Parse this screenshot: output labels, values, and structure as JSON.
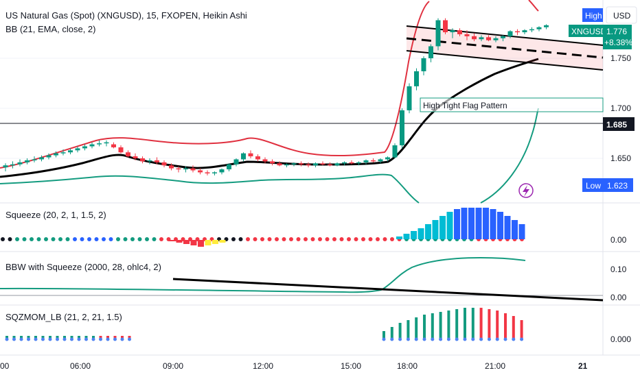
{
  "chart_data": {
    "type": "candlestick",
    "title": "US Natural Gas (Spot) (XNGUSD), 15, FXOPEN, Heikin Ashi",
    "indicator_bb": "BB (21, EMA, close, 2)",
    "currency": "USD",
    "symbol_tag": "XNGUSD",
    "last_price": "1.776",
    "change_pct": "+8.38%",
    "high_label": "High",
    "low_label": "Low",
    "low_value": "1.623",
    "hline_value": "1.685",
    "pattern_label": "High Tight Flag Pattern",
    "price_ticks": [
      "1.750",
      "1.700",
      "1.650"
    ],
    "time_ticks": [
      "00",
      "06:00",
      "09:00",
      "12:00",
      "15:00",
      "18:00",
      "21:00",
      "21"
    ],
    "panels": [
      {
        "name": "Squeeze (20, 2, 1, 1.5, 2)",
        "ticks": [
          "0.00"
        ]
      },
      {
        "name": "BBW with Squeeze (2000, 28, ohlc4, 2)",
        "ticks": [
          "0.10",
          "0.00"
        ]
      },
      {
        "name": "SQZMOM_LB (21, 2, 21, 1.5)",
        "ticks": [
          "0.000"
        ]
      }
    ],
    "colors": {
      "up": "#089981",
      "down": "#f23645",
      "bb_upper": "#e0303f",
      "bb_lower": "#139b7f",
      "basis": "#000000",
      "blue": "#2962ff",
      "cyan": "#00bcd4"
    },
    "candles": [
      [
        1.641,
        1.645,
        1.637,
        1.643
      ],
      [
        1.643,
        1.647,
        1.64,
        1.644
      ],
      [
        1.644,
        1.649,
        1.642,
        1.646
      ],
      [
        1.646,
        1.65,
        1.644,
        1.648
      ],
      [
        1.648,
        1.652,
        1.646,
        1.649
      ],
      [
        1.649,
        1.653,
        1.647,
        1.651
      ],
      [
        1.651,
        1.655,
        1.649,
        1.653
      ],
      [
        1.653,
        1.657,
        1.651,
        1.655
      ],
      [
        1.655,
        1.659,
        1.653,
        1.656
      ],
      [
        1.656,
        1.66,
        1.654,
        1.658
      ],
      [
        1.658,
        1.662,
        1.656,
        1.66
      ],
      [
        1.66,
        1.664,
        1.658,
        1.662
      ],
      [
        1.662,
        1.666,
        1.66,
        1.664
      ],
      [
        1.664,
        1.668,
        1.662,
        1.665
      ],
      [
        1.665,
        1.668,
        1.662,
        1.666
      ],
      [
        1.664,
        1.666,
        1.66,
        1.661
      ],
      [
        1.661,
        1.663,
        1.655,
        1.656
      ],
      [
        1.656,
        1.658,
        1.651,
        1.652
      ],
      [
        1.652,
        1.655,
        1.648,
        1.65
      ],
      [
        1.65,
        1.652,
        1.645,
        1.647
      ],
      [
        1.647,
        1.65,
        1.644,
        1.648
      ],
      [
        1.648,
        1.651,
        1.644,
        1.646
      ],
      [
        1.646,
        1.648,
        1.641,
        1.643
      ],
      [
        1.643,
        1.645,
        1.638,
        1.64
      ],
      [
        1.64,
        1.642,
        1.636,
        1.639
      ],
      [
        1.639,
        1.642,
        1.636,
        1.64
      ],
      [
        1.64,
        1.643,
        1.636,
        1.638
      ],
      [
        1.638,
        1.64,
        1.634,
        1.636
      ],
      [
        1.636,
        1.638,
        1.633,
        1.635
      ],
      [
        1.635,
        1.637,
        1.633,
        1.636
      ],
      [
        1.636,
        1.64,
        1.634,
        1.639
      ],
      [
        1.639,
        1.645,
        1.637,
        1.644
      ],
      [
        1.644,
        1.65,
        1.642,
        1.649
      ],
      [
        1.649,
        1.656,
        1.647,
        1.655
      ],
      [
        1.655,
        1.658,
        1.65,
        1.652
      ],
      [
        1.652,
        1.654,
        1.647,
        1.649
      ],
      [
        1.649,
        1.651,
        1.645,
        1.647
      ],
      [
        1.647,
        1.649,
        1.643,
        1.645
      ],
      [
        1.645,
        1.647,
        1.642,
        1.643
      ],
      [
        1.643,
        1.645,
        1.641,
        1.644
      ],
      [
        1.644,
        1.646,
        1.642,
        1.645
      ],
      [
        1.645,
        1.647,
        1.642,
        1.644
      ],
      [
        1.644,
        1.646,
        1.641,
        1.643
      ],
      [
        1.643,
        1.646,
        1.641,
        1.645
      ],
      [
        1.645,
        1.647,
        1.643,
        1.644
      ],
      [
        1.644,
        1.646,
        1.642,
        1.643
      ],
      [
        1.643,
        1.646,
        1.642,
        1.645
      ],
      [
        1.645,
        1.647,
        1.643,
        1.646
      ],
      [
        1.646,
        1.648,
        1.644,
        1.645
      ],
      [
        1.645,
        1.647,
        1.643,
        1.646
      ],
      [
        1.646,
        1.649,
        1.644,
        1.648
      ],
      [
        1.648,
        1.65,
        1.646,
        1.647
      ],
      [
        1.647,
        1.65,
        1.645,
        1.649
      ],
      [
        1.649,
        1.652,
        1.647,
        1.651
      ],
      [
        1.651,
        1.665,
        1.65,
        1.663
      ],
      [
        1.663,
        1.7,
        1.66,
        1.698
      ],
      [
        1.698,
        1.725,
        1.695,
        1.722
      ],
      [
        1.722,
        1.74,
        1.718,
        1.737
      ],
      [
        1.737,
        1.752,
        1.733,
        1.75
      ],
      [
        1.75,
        1.764,
        1.746,
        1.762
      ],
      [
        1.762,
        1.79,
        1.758,
        1.788
      ],
      [
        1.788,
        1.79,
        1.774,
        1.776
      ],
      [
        1.776,
        1.78,
        1.77,
        1.778
      ],
      [
        1.778,
        1.78,
        1.772,
        1.774
      ],
      [
        1.774,
        1.778,
        1.768,
        1.772
      ],
      [
        1.772,
        1.775,
        1.767,
        1.769
      ],
      [
        1.769,
        1.773,
        1.767,
        1.771
      ],
      [
        1.771,
        1.773,
        1.767,
        1.768
      ],
      [
        1.768,
        1.772,
        1.766,
        1.77
      ],
      [
        1.77,
        1.773,
        1.767,
        1.772
      ],
      [
        1.772,
        1.778,
        1.77,
        1.777
      ],
      [
        1.777,
        1.779,
        1.773,
        1.776
      ],
      [
        1.776,
        1.779,
        1.774,
        1.778
      ],
      [
        1.778,
        1.781,
        1.776,
        1.779
      ],
      [
        1.779,
        1.782,
        1.777,
        1.781
      ],
      [
        1.781,
        1.784,
        1.779,
        1.783
      ]
    ]
  }
}
